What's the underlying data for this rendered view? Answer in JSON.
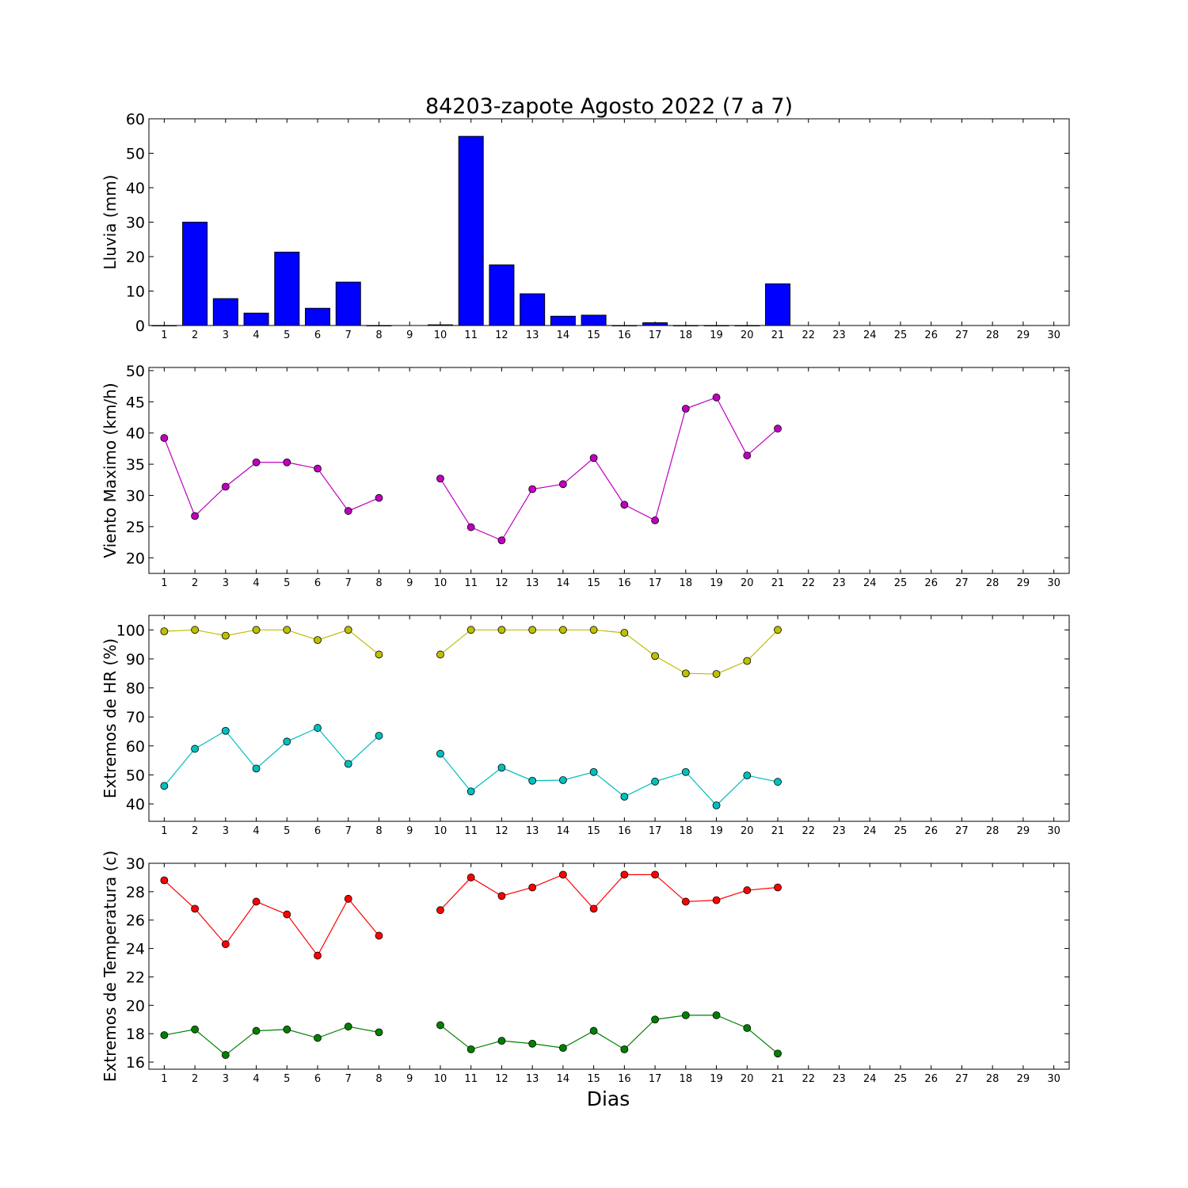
{
  "chart_data": [
    {
      "type": "bar",
      "title": "84203-zapote Agosto 2022  (7 a 7)",
      "ylabel": "Lluvia (mm)",
      "xlabel": "",
      "ylim": [
        0,
        60
      ],
      "yticks": [
        0,
        10,
        20,
        30,
        40,
        50,
        60
      ],
      "x": [
        1,
        2,
        3,
        4,
        5,
        6,
        7,
        8,
        9,
        10,
        11,
        12,
        13,
        14,
        15,
        16,
        17,
        18,
        19,
        20,
        21,
        22,
        23,
        24,
        25,
        26,
        27,
        28,
        29,
        30
      ],
      "values": [
        0.0,
        30.0,
        7.8,
        3.6,
        21.3,
        5.0,
        12.6,
        0.0,
        null,
        0.2,
        54.9,
        17.6,
        9.2,
        2.7,
        3.0,
        0.0,
        0.8,
        0.0,
        0.0,
        0.0,
        12.1,
        null,
        null,
        null,
        null,
        null,
        null,
        null,
        null,
        null
      ],
      "colors": {
        "bar": "#0000ff"
      },
      "grid": false
    },
    {
      "type": "line",
      "ylabel": "Viento Maximo (km/h)",
      "ylim": [
        17.5,
        50.5
      ],
      "yticks": [
        20,
        25,
        30,
        35,
        40,
        45,
        50
      ],
      "x": [
        1,
        2,
        3,
        4,
        5,
        6,
        7,
        8,
        9,
        10,
        11,
        12,
        13,
        14,
        15,
        16,
        17,
        18,
        19,
        20,
        21,
        22,
        23,
        24,
        25,
        26,
        27,
        28,
        29,
        30
      ],
      "series": [
        {
          "color": "#bf00bf",
          "values": [
            39.2,
            26.7,
            31.4,
            35.3,
            35.3,
            34.3,
            27.5,
            29.6,
            null,
            32.7,
            24.9,
            22.8,
            31.0,
            31.8,
            36.0,
            28.5,
            26.0,
            43.9,
            45.7,
            36.4,
            40.7,
            null,
            null,
            null,
            null,
            null,
            null,
            null,
            null,
            null
          ]
        }
      ],
      "grid": false
    },
    {
      "type": "line",
      "ylabel": "Extremos de HR (%)",
      "ylim": [
        34,
        105
      ],
      "yticks": [
        40,
        50,
        60,
        70,
        80,
        90,
        100
      ],
      "x": [
        1,
        2,
        3,
        4,
        5,
        6,
        7,
        8,
        9,
        10,
        11,
        12,
        13,
        14,
        15,
        16,
        17,
        18,
        19,
        20,
        21,
        22,
        23,
        24,
        25,
        26,
        27,
        28,
        29,
        30
      ],
      "series": [
        {
          "color": "#bfbf00",
          "values": [
            99.5,
            100,
            98,
            100,
            100,
            96.5,
            100,
            91.5,
            null,
            91.5,
            100,
            100,
            100,
            100,
            100,
            99,
            91,
            85,
            84.8,
            89.3,
            100,
            null,
            null,
            null,
            null,
            null,
            null,
            null,
            null,
            null
          ]
        },
        {
          "color": "#00bfbf",
          "values": [
            46.2,
            59,
            65.2,
            52.2,
            61.5,
            66.2,
            53.8,
            63.5,
            null,
            57.3,
            44.3,
            52.5,
            48,
            48.2,
            51,
            42.5,
            47.7,
            51,
            39.5,
            49.8,
            47.6,
            null,
            null,
            null,
            null,
            null,
            null,
            null,
            null,
            null
          ]
        }
      ],
      "grid": false
    },
    {
      "type": "line",
      "ylabel": "Extremos de Temperatura (c)",
      "xlabel": "Dias",
      "ylim": [
        15.5,
        30
      ],
      "yticks": [
        16,
        18,
        20,
        22,
        24,
        26,
        28,
        30
      ],
      "x": [
        1,
        2,
        3,
        4,
        5,
        6,
        7,
        8,
        9,
        10,
        11,
        12,
        13,
        14,
        15,
        16,
        17,
        18,
        19,
        20,
        21,
        22,
        23,
        24,
        25,
        26,
        27,
        28,
        29,
        30
      ],
      "series": [
        {
          "color": "#ff0000",
          "values": [
            28.8,
            26.8,
            24.3,
            27.3,
            26.4,
            23.5,
            27.5,
            24.9,
            null,
            26.7,
            29.0,
            27.7,
            28.3,
            29.2,
            26.8,
            29.2,
            29.2,
            27.3,
            27.4,
            28.1,
            28.3,
            null,
            null,
            null,
            null,
            null,
            null,
            null,
            null,
            null
          ]
        },
        {
          "color": "#008000",
          "values": [
            17.9,
            18.3,
            16.5,
            18.2,
            18.3,
            17.7,
            18.5,
            18.1,
            null,
            18.6,
            16.9,
            17.5,
            17.3,
            17.0,
            18.2,
            16.9,
            19.0,
            19.3,
            19.3,
            18.4,
            16.6,
            null,
            null,
            null,
            null,
            null,
            null,
            null,
            null,
            null
          ]
        }
      ],
      "grid": false
    }
  ]
}
